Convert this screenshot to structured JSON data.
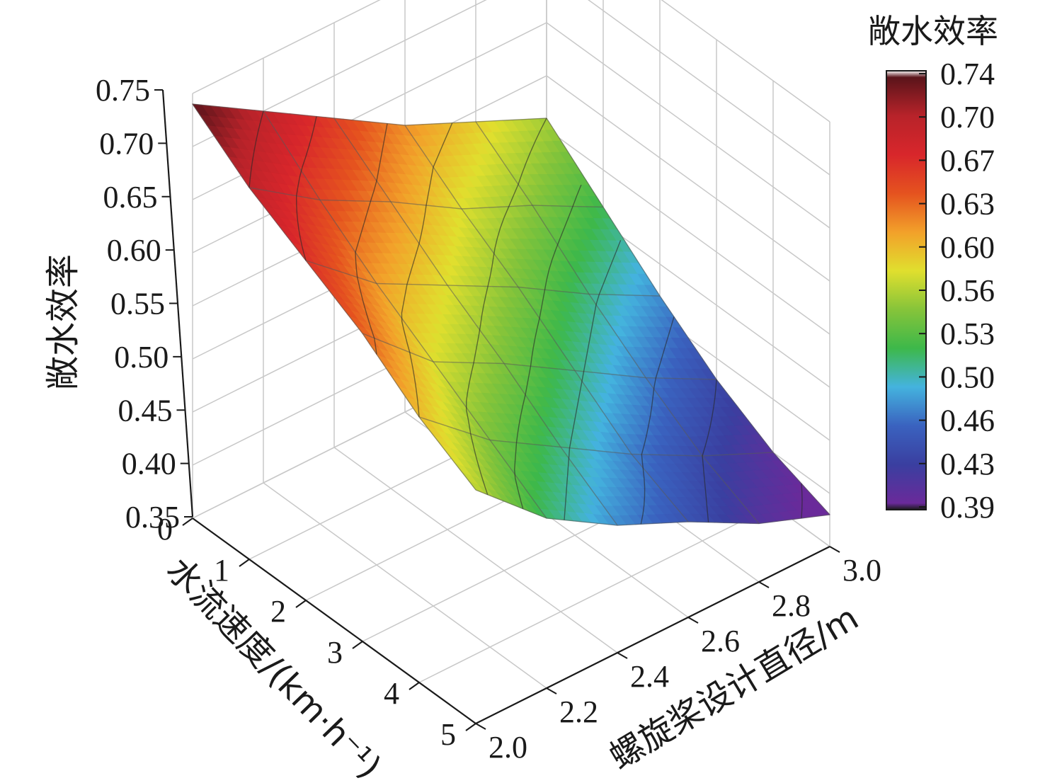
{
  "chart_data": {
    "type": "surface3d",
    "title": "",
    "x_axis": {
      "label": "水流速度/(km·h⁻¹)",
      "ticks": [
        "0",
        "1",
        "2",
        "3",
        "4",
        "5"
      ],
      "range": [
        0,
        5
      ]
    },
    "y_axis": {
      "label": "螺旋桨设计直径/m",
      "ticks": [
        "2.0",
        "2.2",
        "2.4",
        "2.6",
        "2.8",
        "3.0"
      ],
      "range": [
        2.0,
        3.0
      ]
    },
    "z_axis": {
      "label": "敞水效率",
      "ticks": [
        "0.35",
        "0.40",
        "0.45",
        "0.50",
        "0.55",
        "0.60",
        "0.65",
        "0.70",
        "0.75"
      ],
      "range": [
        0.35,
        0.75
      ]
    },
    "surface": {
      "x": [
        0,
        1,
        2,
        3,
        4,
        5
      ],
      "y": [
        2.0,
        2.2,
        2.4,
        2.6,
        2.8,
        3.0
      ],
      "z": [
        [
          0.74,
          0.7,
          0.67,
          0.64,
          0.6,
          0.57
        ],
        [
          0.7,
          0.655,
          0.615,
          0.58,
          0.545,
          0.51
        ],
        [
          0.66,
          0.62,
          0.58,
          0.545,
          0.505,
          0.47
        ],
        [
          0.62,
          0.58,
          0.545,
          0.505,
          0.465,
          0.44
        ],
        [
          0.59,
          0.55,
          0.505,
          0.465,
          0.43,
          0.405
        ],
        [
          0.56,
          0.515,
          0.47,
          0.43,
          0.4,
          0.38
        ]
      ]
    },
    "grid": true,
    "colorbar": {
      "title": "敞水效率",
      "ticks": [
        "0.74",
        "0.70",
        "0.67",
        "0.63",
        "0.60",
        "0.56",
        "0.53",
        "0.50",
        "0.46",
        "0.43",
        "0.39"
      ],
      "range": [
        0.39,
        0.74
      ],
      "colors": [
        "#1a1a1a",
        "#6a2a9a",
        "#3a3fa0",
        "#3a62bf",
        "#44b3de",
        "#3db84a",
        "#86c43a",
        "#e0df2e",
        "#f2a12a",
        "#e5531f",
        "#d8262b",
        "#b8232a",
        "#5a141a",
        "#ffffff"
      ]
    }
  }
}
